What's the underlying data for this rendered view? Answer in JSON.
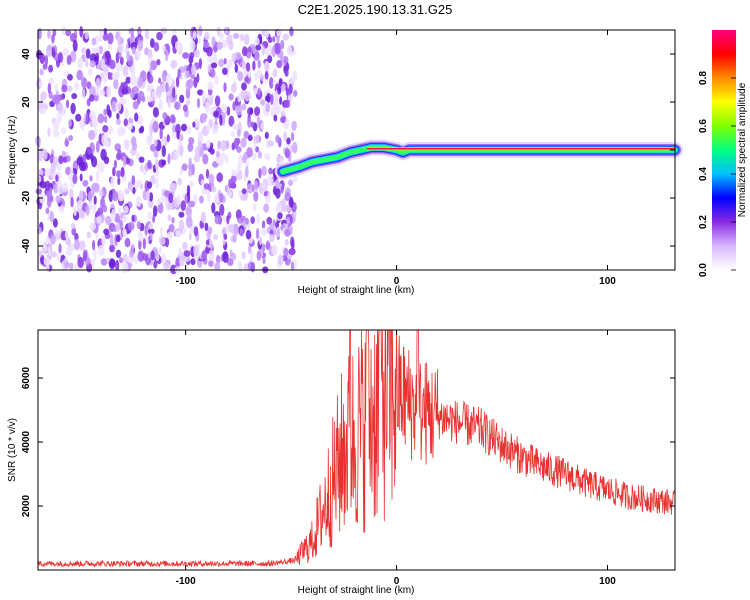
{
  "title": "C2E1.2025.190.13.31.G25",
  "chart_data": [
    {
      "type": "heatmap",
      "xlabel": "Height of straight line (km)",
      "ylabel": "Frequency (Hz)",
      "xlim": [
        -170,
        132
      ],
      "ylim": [
        -50,
        50
      ],
      "xticks": [
        -100,
        0,
        100
      ],
      "yticks": [
        -40,
        -20,
        0,
        20,
        40
      ],
      "noise_region_x": [
        -170,
        -48
      ],
      "signal_track": {
        "x": [
          -54,
          -46,
          -40,
          -34,
          -28,
          -22,
          -17,
          -12,
          -6,
          0,
          3,
          6,
          10,
          30,
          60,
          90,
          132
        ],
        "y": [
          -9,
          -7,
          -5,
          -4,
          -3,
          -1,
          0,
          1,
          1,
          0,
          -1,
          0,
          0,
          0,
          0,
          0,
          0
        ]
      },
      "colorbar": {
        "label": "Normalized spectral amplitude",
        "range": [
          0.0,
          1.0
        ],
        "ticks": [
          "0.0",
          "0.2",
          "0.4",
          "0.6",
          "0.8"
        ],
        "colors": [
          "#ffffff",
          "#d8b8ff",
          "#8a2be2",
          "#0000ff",
          "#00bfff",
          "#00ff80",
          "#7fff00",
          "#ffff00",
          "#ff8c00",
          "#ff0000",
          "#ff0080"
        ]
      }
    },
    {
      "type": "line",
      "xlabel": "Height of straight line (km)",
      "ylabel": "SNR (10 * v/v)",
      "xlim": [
        -170,
        132
      ],
      "ylim": [
        0,
        7500
      ],
      "xticks": [
        -100,
        0,
        100
      ],
      "yticks": [
        2000,
        4000,
        6000
      ],
      "line_color": "#e8312f",
      "envelope": {
        "x": [
          -170,
          -60,
          -48,
          -40,
          -30,
          -25,
          -20,
          -15,
          -10,
          -5,
          0,
          5,
          10,
          20,
          30,
          40,
          50,
          60,
          70,
          80,
          90,
          100,
          110,
          120,
          132
        ],
        "y": [
          200,
          200,
          300,
          900,
          2800,
          3800,
          4200,
          4600,
          5000,
          5800,
          5600,
          5300,
          5000,
          4800,
          4600,
          4400,
          3900,
          3500,
          3200,
          3000,
          2700,
          2500,
          2300,
          2200,
          2100
        ]
      },
      "spikes": [
        {
          "x": -22,
          "y": 7500
        },
        {
          "x": -14,
          "y": 7500
        },
        {
          "x": -8,
          "y": 7500
        },
        {
          "x": 10,
          "y": 7500
        }
      ]
    }
  ]
}
